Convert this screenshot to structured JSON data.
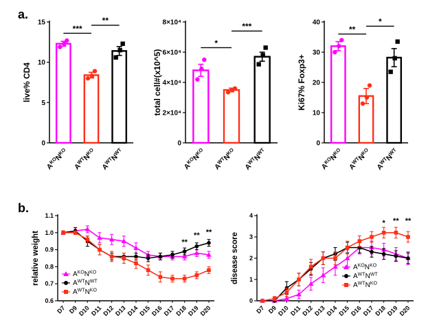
{
  "panels": {
    "a_label": "a.",
    "b_label": "b."
  },
  "colors": {
    "magenta": "#FF00FF",
    "red": "#FF2F17",
    "black": "#000000"
  },
  "chart_data": [
    {
      "id": "live-cd4",
      "type": "bar",
      "ylabel": "live% CD4",
      "categories": [
        "A^{KO}N^{KO}",
        "A^{WT}N^{KO}",
        "A^{WT}N^{WT}"
      ],
      "values": [
        12.3,
        8.4,
        11.4
      ],
      "errors": [
        0.3,
        0.35,
        0.55
      ],
      "points": [
        [
          11.9,
          12.3,
          12.7
        ],
        [
          8.0,
          8.3,
          8.9
        ],
        [
          10.6,
          11.5,
          12.3
        ]
      ],
      "bar_colors": [
        "#FF00FF",
        "#FF2F17",
        "#000000"
      ],
      "point_markers": [
        "circle",
        "circle",
        "square"
      ],
      "ylim": [
        0,
        15
      ],
      "yticks": [
        0,
        5,
        10,
        15
      ],
      "ytick_labels": [
        "0",
        "5",
        "10",
        "15"
      ],
      "comparisons": [
        {
          "from": 0,
          "to": 1,
          "label": "***",
          "y": 13.6
        },
        {
          "from": 1,
          "to": 2,
          "label": "**",
          "y": 14.6
        }
      ]
    },
    {
      "id": "total-cell",
      "type": "bar",
      "ylabel": "total cell#(x10^5)",
      "categories": [
        "A^{KO}N^{KO}",
        "A^{WT}N^{KO}",
        "A^{WT}N^{WT}"
      ],
      "values": [
        48000,
        35000,
        57000
      ],
      "errors": [
        4000,
        1200,
        3000
      ],
      "points": [
        [
          42000,
          49000,
          55000
        ],
        [
          33500,
          35000,
          36000
        ],
        [
          52000,
          58000,
          63000
        ]
      ],
      "bar_colors": [
        "#FF00FF",
        "#FF2F17",
        "#000000"
      ],
      "point_markers": [
        "circle",
        "circle",
        "square"
      ],
      "ylim": [
        0,
        80000
      ],
      "yticks": [
        0,
        20000,
        40000,
        60000,
        80000
      ],
      "ytick_labels": [
        "0",
        "2×10⁴",
        "4×10⁴",
        "6×10⁴",
        "8×10⁴"
      ],
      "comparisons": [
        {
          "from": 0,
          "to": 1,
          "label": "*",
          "y": 63000
        },
        {
          "from": 1,
          "to": 2,
          "label": "***",
          "y": 74000
        }
      ]
    },
    {
      "id": "ki67-foxp3",
      "type": "bar",
      "ylabel": "Ki67% Foxp3+",
      "categories": [
        "A^{KO}N^{KO}",
        "A^{WT}N^{KO}",
        "A^{WT}N^{WT}"
      ],
      "values": [
        32,
        15.5,
        28.2
      ],
      "errors": [
        1.5,
        2.5,
        3
      ],
      "points": [
        [
          30,
          32,
          34
        ],
        [
          13,
          15,
          19
        ],
        [
          23.5,
          28,
          33.5
        ]
      ],
      "bar_colors": [
        "#FF00FF",
        "#FF2F17",
        "#000000"
      ],
      "point_markers": [
        "circle",
        "circle",
        "square"
      ],
      "ylim": [
        0,
        40
      ],
      "yticks": [
        0,
        10,
        20,
        30,
        40
      ],
      "ytick_labels": [
        "0",
        "10",
        "20",
        "30",
        "40"
      ],
      "comparisons": [
        {
          "from": 0,
          "to": 1,
          "label": "**",
          "y": 36
        },
        {
          "from": 1,
          "to": 2,
          "label": "*",
          "y": 38.6
        }
      ]
    },
    {
      "id": "relative-weight",
      "type": "line",
      "ylabel": "relative weight",
      "categories": [
        "D7",
        "D9",
        "D10",
        "D11",
        "D12",
        "D13",
        "D14",
        "D15",
        "D16",
        "D17",
        "D18",
        "D19",
        "D20"
      ],
      "ylim": [
        0.6,
        1.1
      ],
      "yticks": [
        0.6,
        0.7,
        0.8,
        0.9,
        1.0,
        1.1
      ],
      "ytick_labels": [
        "0.6",
        "0.7",
        "0.8",
        "0.9",
        "1.0",
        "1.1"
      ],
      "legend_pos": "bottom-left",
      "series": [
        {
          "name": "A^{KO}N^{KO}",
          "color": "#FF00FF",
          "marker": "triangle",
          "values": [
            1.0,
            1.01,
            1.02,
            0.97,
            0.96,
            0.95,
            0.91,
            0.87,
            0.86,
            0.86,
            0.86,
            0.88,
            0.87
          ],
          "errors": [
            0.01,
            0.01,
            0.02,
            0.03,
            0.03,
            0.03,
            0.03,
            0.02,
            0.02,
            0.02,
            0.02,
            0.02,
            0.02
          ]
        },
        {
          "name": "A^{WT}N^{WT}",
          "color": "#000000",
          "marker": "circle",
          "values": [
            1.0,
            1.01,
            0.95,
            0.9,
            0.86,
            0.86,
            0.86,
            0.85,
            0.86,
            0.87,
            0.89,
            0.92,
            0.94
          ],
          "errors": [
            0.01,
            0.02,
            0.03,
            0.03,
            0.02,
            0.02,
            0.02,
            0.02,
            0.02,
            0.02,
            0.02,
            0.02,
            0.02
          ]
        },
        {
          "name": "A^{WT}N^{KO}",
          "color": "#FF2F17",
          "marker": "square",
          "values": [
            1.0,
            1.0,
            0.96,
            0.9,
            0.86,
            0.85,
            0.82,
            0.78,
            0.74,
            0.73,
            0.73,
            0.75,
            0.78
          ],
          "errors": [
            0.01,
            0.01,
            0.02,
            0.03,
            0.03,
            0.03,
            0.03,
            0.03,
            0.03,
            0.02,
            0.02,
            0.02,
            0.02
          ]
        }
      ],
      "annotations": [
        {
          "x": "D18",
          "y": 0.93,
          "label": "**"
        },
        {
          "x": "D19",
          "y": 0.97,
          "label": "**"
        },
        {
          "x": "D20",
          "y": 0.99,
          "label": "**"
        }
      ]
    },
    {
      "id": "disease-score",
      "type": "line",
      "ylabel": "disease score",
      "categories": [
        "D7",
        "D9",
        "D10",
        "D11",
        "D12",
        "D13",
        "D14",
        "D15",
        "D16",
        "D17",
        "D18",
        "D19",
        "D20"
      ],
      "ylim": [
        0,
        4
      ],
      "yticks": [
        0,
        1,
        2,
        3,
        4
      ],
      "ytick_labels": [
        "0",
        "1",
        "2",
        "3",
        "4"
      ],
      "legend_pos": "bottom-right",
      "series": [
        {
          "name": "A^{KO}N^{KO}",
          "color": "#FF00FF",
          "marker": "triangle",
          "values": [
            0,
            0,
            0.1,
            0.3,
            0.8,
            1.2,
            1.6,
            2.0,
            2.5,
            2.5,
            2.4,
            2.2,
            2.0
          ],
          "errors": [
            0,
            0,
            0.1,
            0.2,
            0.3,
            0.35,
            0.4,
            0.4,
            0.3,
            0.3,
            0.3,
            0.3,
            0.3
          ]
        },
        {
          "name": "A^{WT}N^{WT}",
          "color": "#000000",
          "marker": "circle",
          "values": [
            0,
            0,
            0.6,
            1.0,
            1.5,
            2.0,
            2.2,
            2.5,
            2.5,
            2.3,
            2.2,
            2.1,
            2.0
          ],
          "errors": [
            0,
            0,
            0.3,
            0.3,
            0.3,
            0.3,
            0.3,
            0.25,
            0.25,
            0.25,
            0.25,
            0.25,
            0.25
          ]
        },
        {
          "name": "A^{WT}N^{KO}",
          "color": "#FF2F17",
          "marker": "square",
          "values": [
            0,
            0.1,
            0.4,
            1.0,
            1.6,
            2.0,
            2.0,
            2.5,
            2.8,
            3.0,
            3.2,
            3.2,
            3.0
          ],
          "errors": [
            0,
            0.1,
            0.2,
            0.3,
            0.35,
            0.3,
            0.3,
            0.3,
            0.25,
            0.25,
            0.25,
            0.25,
            0.25
          ]
        }
      ],
      "annotations": [
        {
          "x": "D18",
          "y": 3.55,
          "label": "*"
        },
        {
          "x": "D19",
          "y": 3.65,
          "label": "**"
        },
        {
          "x": "D20",
          "y": 3.65,
          "label": "**"
        }
      ]
    }
  ]
}
